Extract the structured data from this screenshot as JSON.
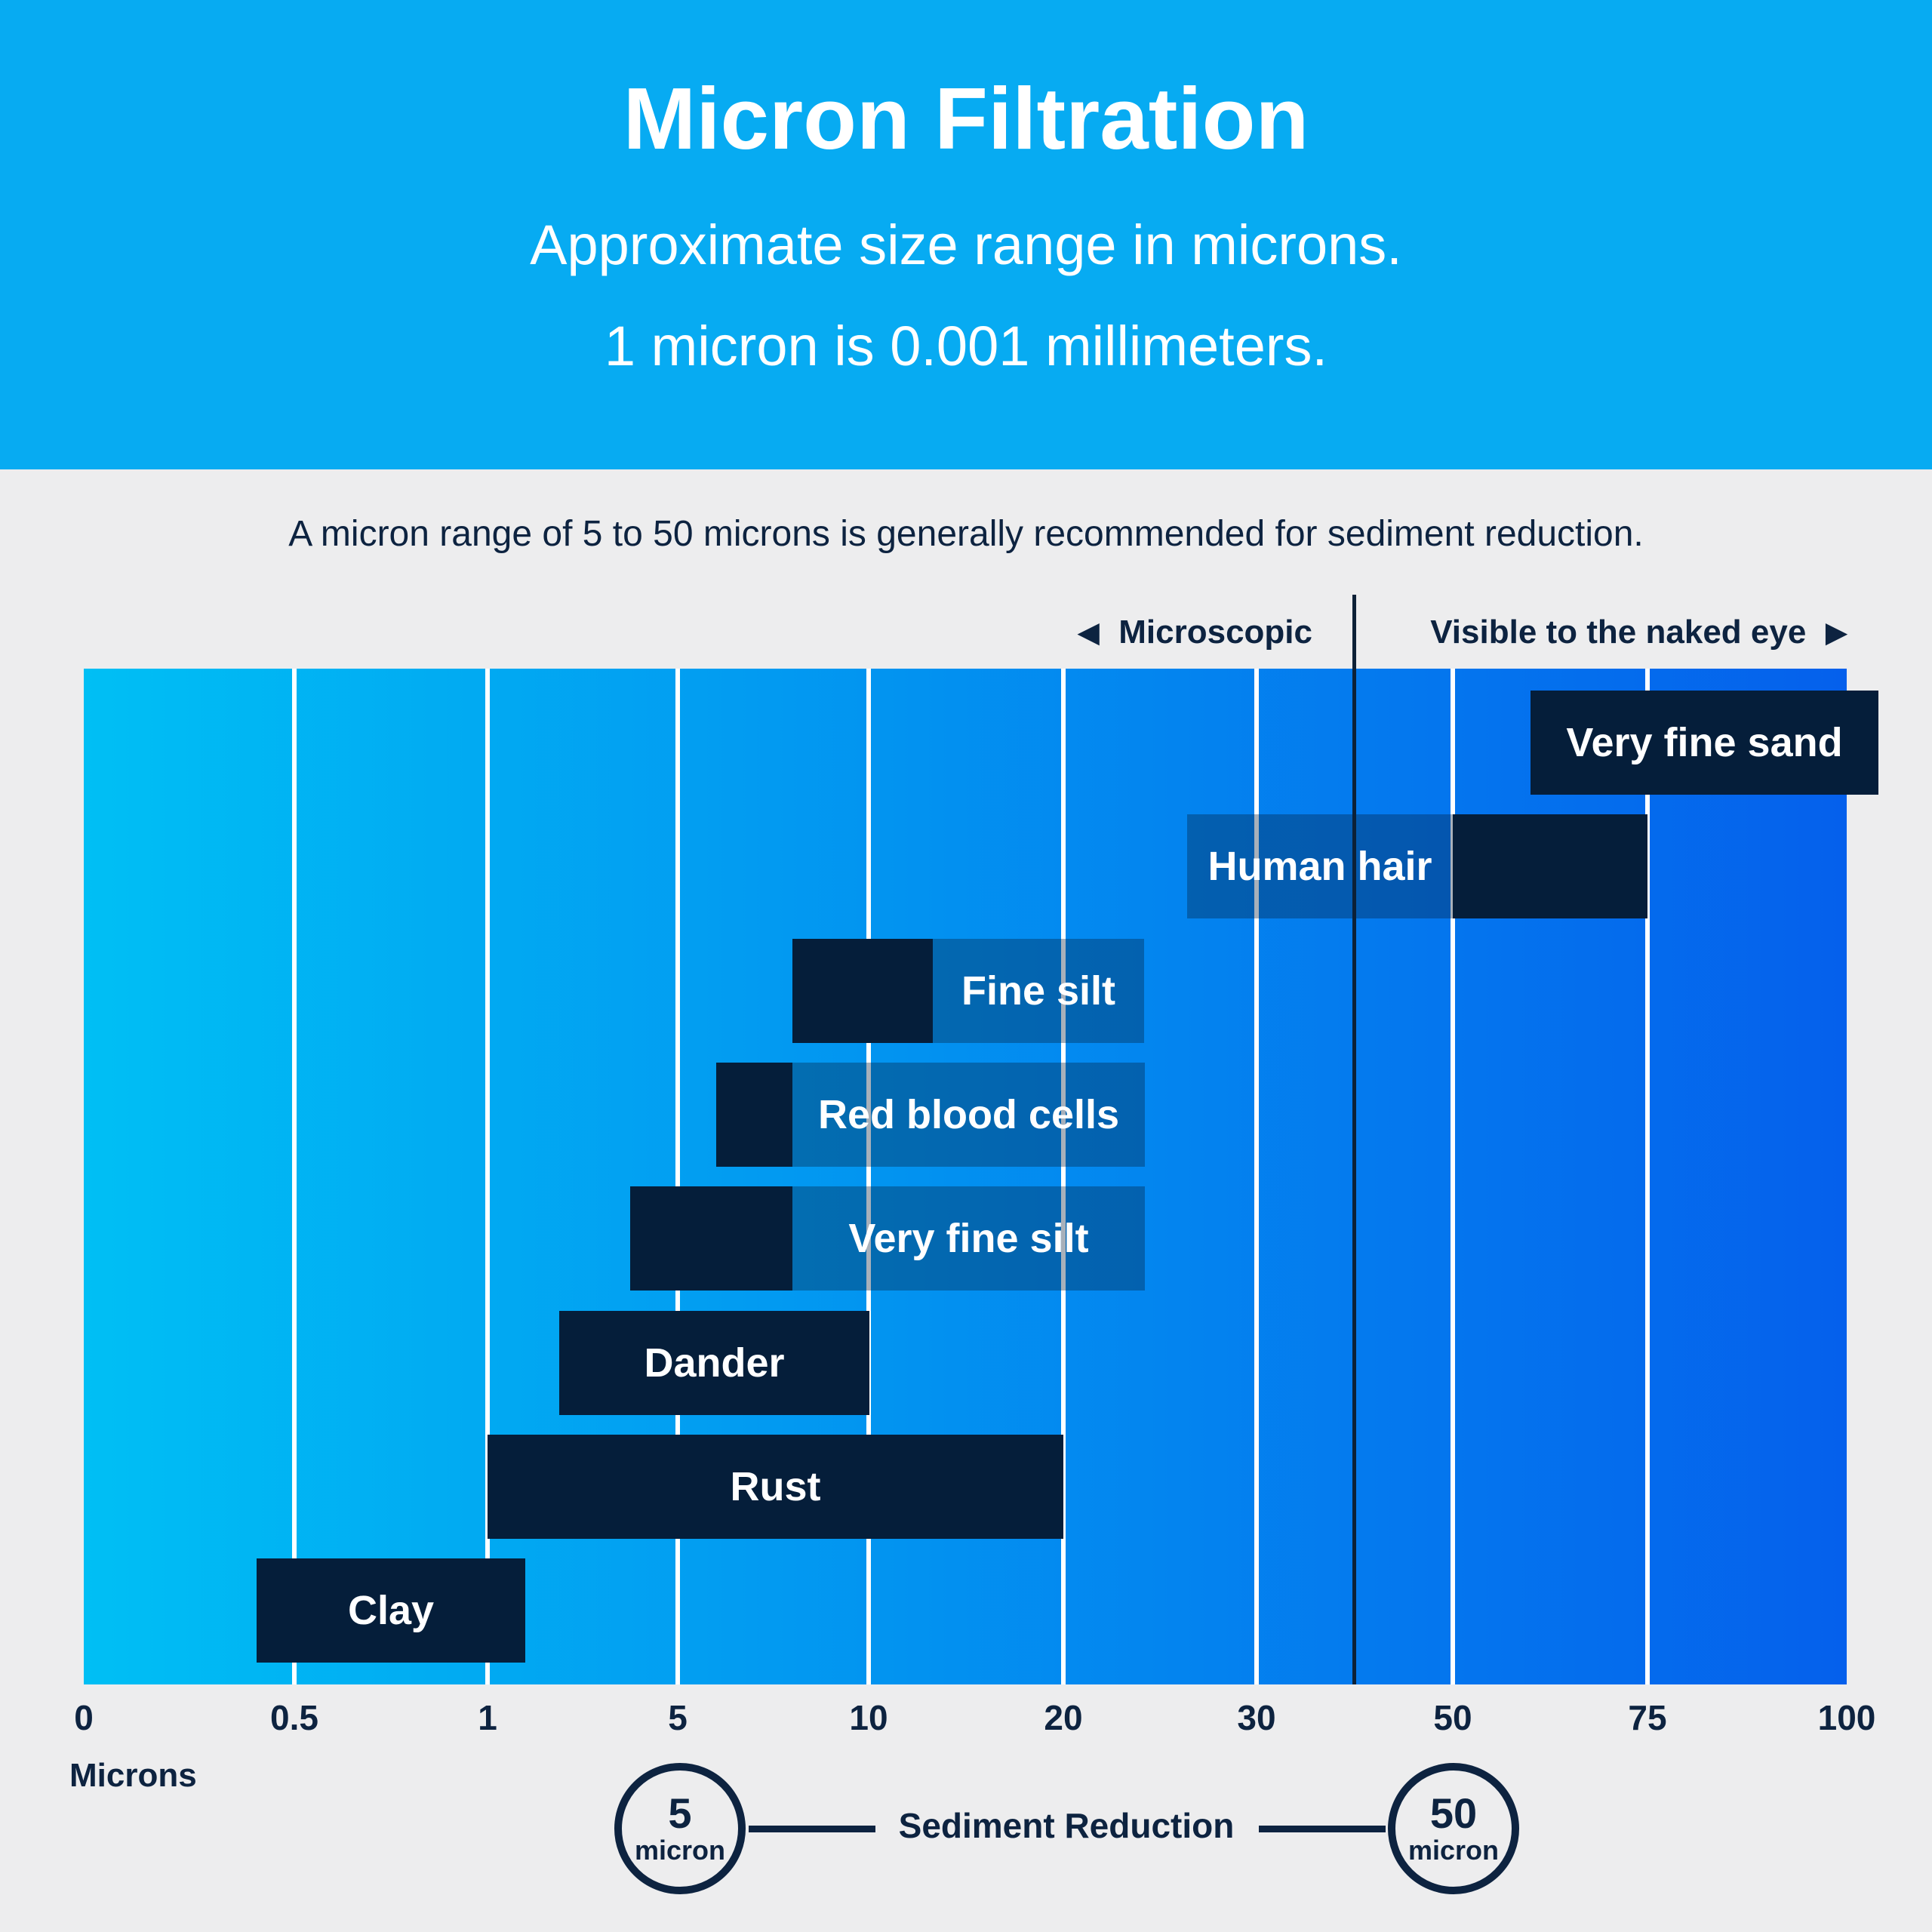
{
  "header": {
    "title": "Micron Filtration",
    "subtitle_line1": "Approximate size range in microns.",
    "subtitle_line2": "1 micron is 0.001 millimeters.",
    "background_color": "#07ABF2"
  },
  "note": "A micron range of 5 to 50 microns is generally recommended for sediment reduction.",
  "region_labels": {
    "left_arrow": "◀",
    "left": "Microscopic",
    "right": "Visible to the naked eye",
    "right_arrow": "▶",
    "divider_at_micron": 40
  },
  "axis": {
    "unit_label": "Microns",
    "tick_labels": [
      "0",
      "0.5",
      "1",
      "5",
      "10",
      "20",
      "30",
      "50",
      "75",
      "100"
    ],
    "tick_values": [
      0,
      0.5,
      1,
      5,
      10,
      20,
      30,
      50,
      75,
      100
    ]
  },
  "legend": {
    "circle1_value": "5",
    "circle1_unit": "micron",
    "label": "Sediment Reduction",
    "circle2_value": "50",
    "circle2_unit": "micron"
  },
  "colors": {
    "banner_blue": "#07ABF2",
    "page_background": "#EDEDEE",
    "navy": "#0D2340",
    "bar_navy": "#051E3A",
    "gradient_left": "#00BFF4",
    "gradient_right": "#0560EC",
    "gridline": "#FFFFFF",
    "label_box_overlay": "rgba(5,30,58,0.35)"
  },
  "chart_data": {
    "type": "bar",
    "orientation": "horizontal-range",
    "title": "Micron Filtration — approximate particle size ranges in microns",
    "xlabel": "Microns",
    "x_scale": "non-linear, ticks evenly spaced at 0, 0.5, 1, 5, 10, 20, 30, 50, 75, 100",
    "annotations": [
      "Microscopic left of ~40 microns",
      "Visible to the naked eye right of ~40 microns",
      "Sediment Reduction range 5 to 50 micron"
    ],
    "bars": [
      {
        "id": "very-fine-sand",
        "label": "Very fine sand",
        "microns": [
          60,
          104
        ],
        "overflows_right": true,
        "dark": [
          60,
          104
        ],
        "label_box": null,
        "text_in": "dark"
      },
      {
        "id": "human-hair",
        "label": "Human hair",
        "microns": [
          50,
          75
        ],
        "dark": [
          50,
          75
        ],
        "label_box": [
          26.4,
          50
        ],
        "text_in": "label_box"
      },
      {
        "id": "fine-silt",
        "label": "Fine silt",
        "microns": [
          8,
          13.3
        ],
        "dark": [
          8,
          13.3
        ],
        "label_box": [
          13.3,
          24.2
        ],
        "text_in": "label_box"
      },
      {
        "id": "red-blood-cells",
        "label": "Red blood cells",
        "microns": [
          6,
          8
        ],
        "dark": [
          6,
          8
        ],
        "label_box": [
          8,
          24.2
        ],
        "text_in": "label_box"
      },
      {
        "id": "very-fine-silt",
        "label": "Very fine silt",
        "microns": [
          4,
          8
        ],
        "dark": [
          4,
          8
        ],
        "label_box": [
          8,
          24.2
        ],
        "text_in": "label_box"
      },
      {
        "id": "dander",
        "label": "Dander",
        "microns": [
          2.5,
          10
        ],
        "dark": [
          2.5,
          10
        ],
        "label_box": null,
        "text_in": "dark"
      },
      {
        "id": "rust",
        "label": "Rust",
        "microns": [
          1,
          20
        ],
        "dark": [
          1,
          20
        ],
        "label_box": null,
        "text_in": "dark"
      },
      {
        "id": "clay",
        "label": "Clay",
        "microns": [
          0.41,
          1.79
        ],
        "dark": [
          0.41,
          1.79
        ],
        "label_box": null,
        "text_in": "dark"
      }
    ]
  }
}
